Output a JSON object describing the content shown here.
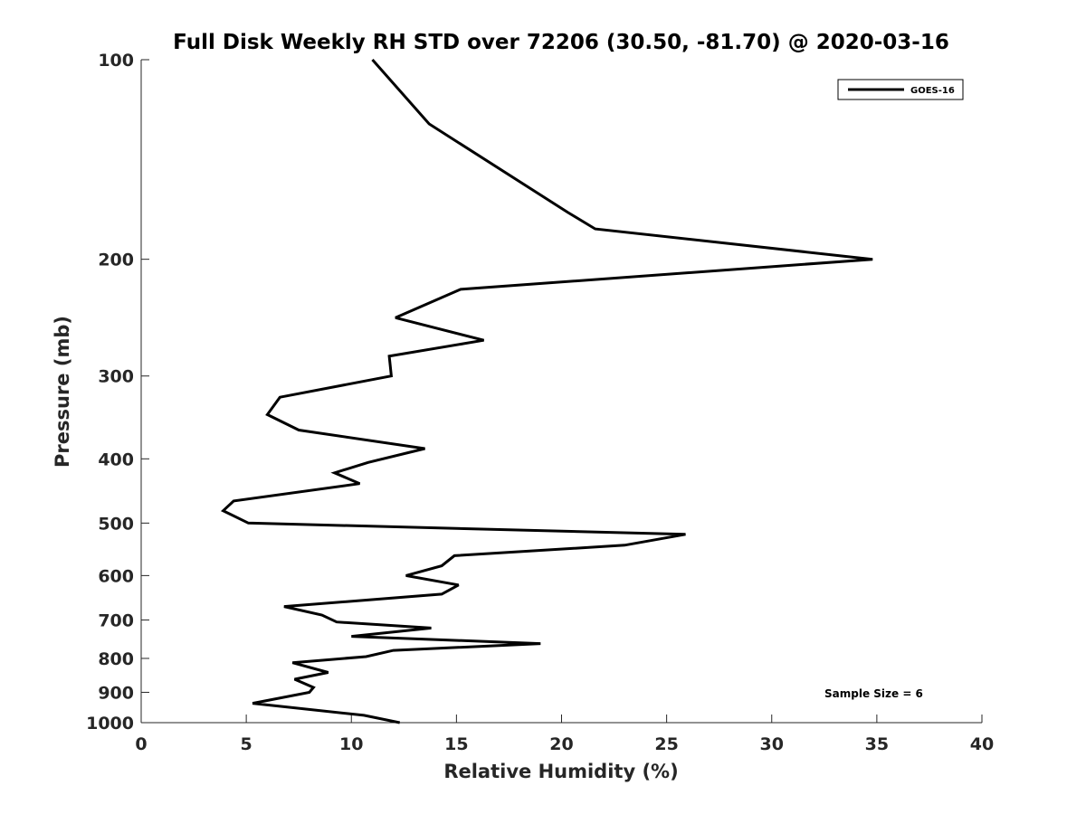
{
  "chart_data": {
    "type": "line",
    "title": "Full Disk Weekly RH STD over 72206 (30.50, -81.70) @ 2020-03-16",
    "xlabel": "Relative Humidity (%)",
    "ylabel": "Pressure (mb)",
    "xlim": [
      0,
      40
    ],
    "ylim": [
      100,
      1000
    ],
    "yscale": "log",
    "y_reversed": true,
    "grid": false,
    "legend_position": "top-right",
    "xticks": [
      0,
      5,
      10,
      15,
      20,
      25,
      30,
      35,
      40
    ],
    "xtick_labels": [
      "0",
      "5",
      "10",
      "15",
      "20",
      "25",
      "30",
      "35",
      "40"
    ],
    "yticks": [
      100,
      200,
      300,
      400,
      500,
      600,
      700,
      800,
      900,
      1000
    ],
    "ytick_labels": [
      "100",
      "200",
      "300",
      "400",
      "500",
      "600",
      "700",
      "800",
      "900",
      "1000"
    ],
    "series": [
      {
        "name": "GOES-16",
        "color": "#000000",
        "points": [
          [
            11.0,
            100
          ],
          [
            13.7,
            125
          ],
          [
            20.3,
            170
          ],
          [
            21.6,
            180
          ],
          [
            34.8,
            200
          ],
          [
            15.2,
            222
          ],
          [
            12.1,
            245
          ],
          [
            16.3,
            265
          ],
          [
            11.8,
            280
          ],
          [
            11.9,
            300
          ],
          [
            6.6,
            323
          ],
          [
            6.0,
            343
          ],
          [
            7.5,
            362
          ],
          [
            13.5,
            386
          ],
          [
            10.8,
            405
          ],
          [
            9.2,
            420
          ],
          [
            10.4,
            436
          ],
          [
            4.4,
            463
          ],
          [
            3.9,
            479
          ],
          [
            5.1,
            500
          ],
          [
            25.9,
            520
          ],
          [
            23.0,
            540
          ],
          [
            14.9,
            560
          ],
          [
            14.3,
            580
          ],
          [
            12.6,
            600
          ],
          [
            15.1,
            620
          ],
          [
            14.3,
            640
          ],
          [
            6.8,
            668
          ],
          [
            8.6,
            688
          ],
          [
            9.3,
            705
          ],
          [
            13.8,
            720
          ],
          [
            10.0,
            741
          ],
          [
            19.0,
            760
          ],
          [
            12.0,
            778
          ],
          [
            10.7,
            795
          ],
          [
            7.2,
            812
          ],
          [
            8.9,
            840
          ],
          [
            7.3,
            860
          ],
          [
            8.2,
            885
          ],
          [
            8.0,
            900
          ],
          [
            5.3,
            935
          ],
          [
            10.6,
            975
          ],
          [
            12.3,
            1000
          ]
        ]
      }
    ],
    "annotations": [
      {
        "text": "Sample Size = 6",
        "x": 35.5,
        "y": 900
      }
    ]
  }
}
